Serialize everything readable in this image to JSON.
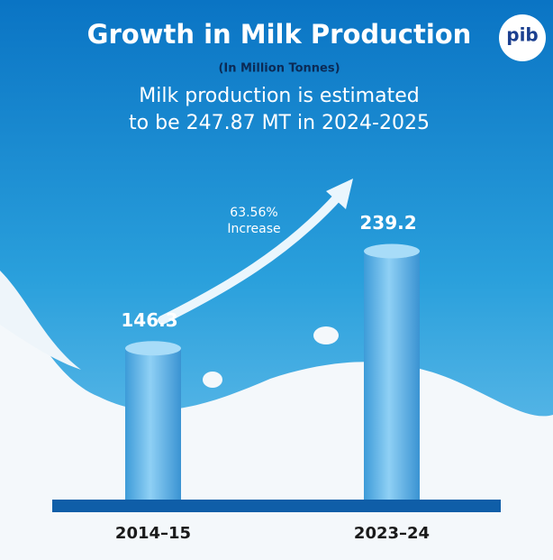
{
  "chart_data": {
    "type": "bar",
    "title": "Growth in Milk Production",
    "subtitle": "(In Million Tonnes)",
    "annotation_lines": [
      "Milk production is estimated",
      "to be 247.87 MT in 2024-2025"
    ],
    "arrow_label_lines": [
      "63.56%",
      "Increase"
    ],
    "logo": "pib",
    "categories": [
      "2014–15",
      "2023–24"
    ],
    "values": [
      146.3,
      239.2
    ],
    "color": "#5fb3e6"
  }
}
